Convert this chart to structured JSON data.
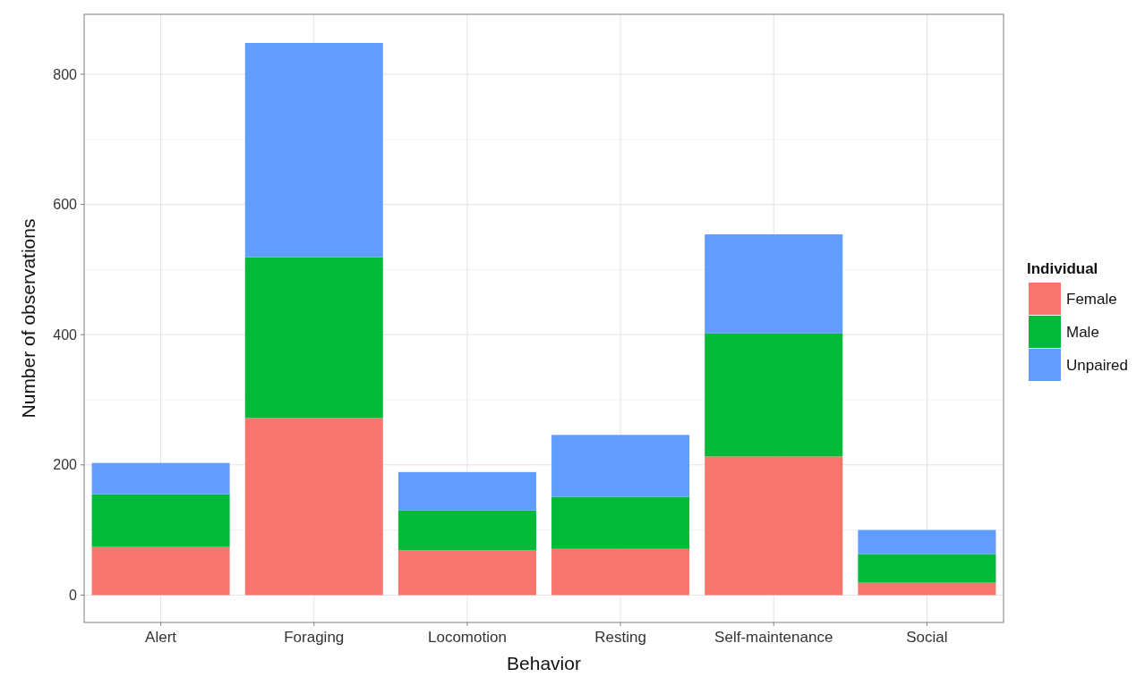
{
  "chart_data": {
    "type": "bar",
    "stacked": true,
    "xlabel": "Behavior",
    "ylabel": "Number of observations",
    "legend_title": "Individual",
    "legend": "right",
    "grid": true,
    "categories": [
      "Alert",
      "Foraging",
      "Locomotion",
      "Resting",
      "Self-maintenance",
      "Social"
    ],
    "series": [
      {
        "name": "Female",
        "color": "#f8766d",
        "values": [
          74,
          272,
          69,
          71,
          213,
          19
        ]
      },
      {
        "name": "Male",
        "color": "#00ba38",
        "values": [
          81,
          247,
          61,
          80,
          189,
          44
        ]
      },
      {
        "name": "Unpaired",
        "color": "#619cff",
        "values": [
          48,
          329,
          59,
          95,
          152,
          37
        ]
      }
    ],
    "ylim": [
      -42,
      892
    ],
    "yticks": [
      0,
      200,
      400,
      600,
      800
    ]
  }
}
